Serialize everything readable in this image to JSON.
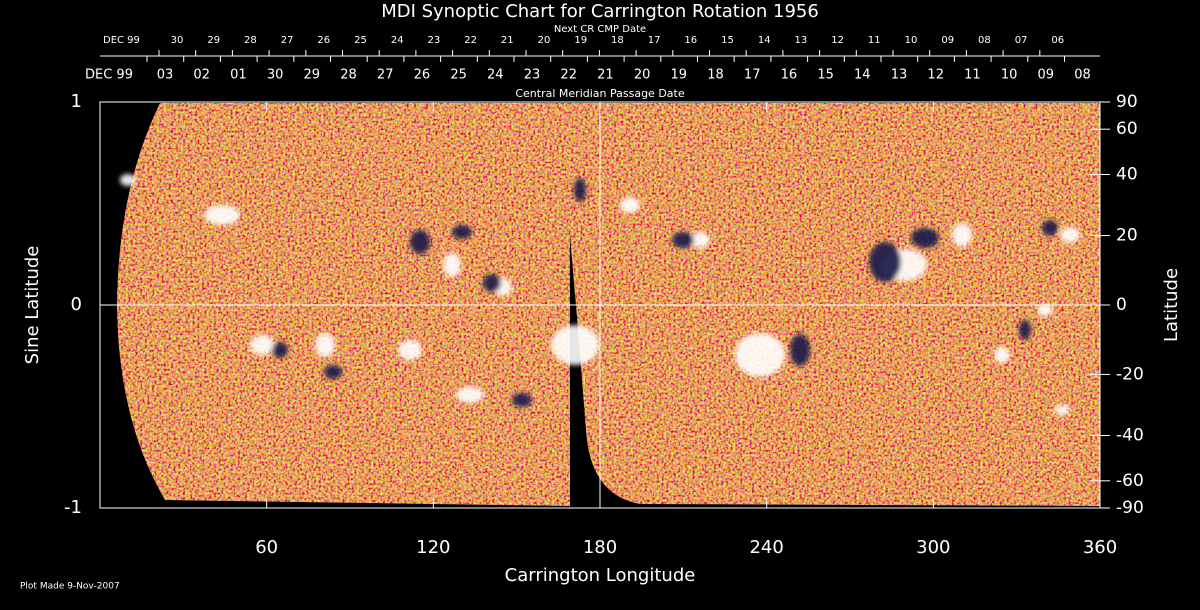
{
  "chart_data": {
    "type": "map",
    "title": "MDI Synoptic Chart for Carrington Rotation 1956",
    "xlabel": "Carrington Longitude",
    "ylabel": "Sine Latitude",
    "y2label": "Latitude",
    "xlim": [
      0,
      360
    ],
    "xticks": [
      60,
      120,
      180,
      240,
      300,
      360
    ],
    "ylim": [
      -1,
      1
    ],
    "yticks": [
      -1,
      0,
      1
    ],
    "y2lim": [
      -90,
      90
    ],
    "y2ticks": [
      90,
      60,
      40,
      20,
      0,
      -20,
      -40,
      -60,
      -90
    ],
    "y2scale": "sine",
    "top_axis": {
      "title": "Next CR CMP Date",
      "color": "#ff4a1a",
      "labels": [
        "DEC 99",
        "30",
        "29",
        "28",
        "27",
        "26",
        "25",
        "24",
        "23",
        "22",
        "21",
        "20",
        "19",
        "18",
        "17",
        "16",
        "15",
        "14",
        "13",
        "12",
        "11",
        "10",
        "09",
        "08",
        "07",
        "06"
      ]
    },
    "top_axis2": {
      "title": "Central Meridian Passage Date",
      "color": "#ffffff",
      "labels": [
        "DEC 99",
        "03",
        "02",
        "01",
        "30",
        "29",
        "28",
        "27",
        "26",
        "25",
        "24",
        "23",
        "22",
        "21",
        "20",
        "19",
        "18",
        "17",
        "16",
        "15",
        "14",
        "13",
        "12",
        "11",
        "10",
        "09",
        "08"
      ]
    },
    "footnote": "Plot Made  9-Nov-2007"
  }
}
